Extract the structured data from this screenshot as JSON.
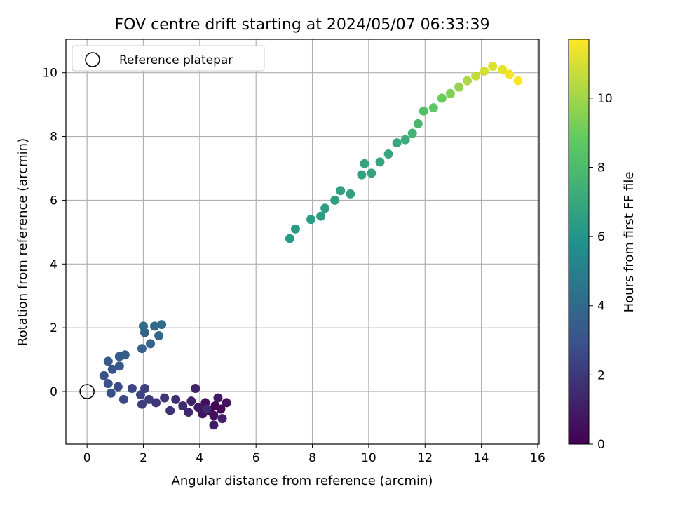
{
  "chart_data": {
    "type": "scatter",
    "title": "FOV centre drift starting at 2024/05/07 06:33:39",
    "xlabel": "Angular distance from reference (arcmin)",
    "ylabel": "Rotation from reference (arcmin)",
    "xlim": [
      -0.75,
      16.05
    ],
    "ylim": [
      -1.65,
      11.05
    ],
    "xticks": [
      0,
      2,
      4,
      6,
      8,
      10,
      12,
      14,
      16
    ],
    "yticks": [
      0,
      2,
      4,
      6,
      8,
      10
    ],
    "grid": true,
    "legend": {
      "placement": "top-left",
      "entries": [
        "Reference platepar"
      ]
    },
    "reference_point": {
      "x": 0,
      "y": 0
    },
    "colorbar": {
      "label": "Hours from first FF file",
      "colormap": "viridis",
      "range": [
        0,
        11.7
      ],
      "ticks": [
        0,
        2,
        4,
        6,
        8,
        10
      ]
    },
    "series": [
      {
        "x": 4.55,
        "y": -0.45,
        "hours": 0.1
      },
      {
        "x": 4.35,
        "y": -0.6,
        "hours": 0.2
      },
      {
        "x": 4.75,
        "y": -0.55,
        "hours": 0.3
      },
      {
        "x": 4.2,
        "y": -0.35,
        "hours": 0.4
      },
      {
        "x": 4.5,
        "y": -0.75,
        "hours": 0.5
      },
      {
        "x": 4.95,
        "y": -0.35,
        "hours": 0.6
      },
      {
        "x": 4.1,
        "y": -0.7,
        "hours": 0.7
      },
      {
        "x": 4.65,
        "y": -0.2,
        "hours": 0.8
      },
      {
        "x": 3.95,
        "y": -0.5,
        "hours": 0.9
      },
      {
        "x": 4.5,
        "y": -1.05,
        "hours": 1.0
      },
      {
        "x": 4.8,
        "y": -0.85,
        "hours": 1.1
      },
      {
        "x": 3.7,
        "y": -0.3,
        "hours": 1.2
      },
      {
        "x": 3.85,
        "y": 0.1,
        "hours": 1.3
      },
      {
        "x": 3.6,
        "y": -0.65,
        "hours": 1.4
      },
      {
        "x": 4.25,
        "y": -0.55,
        "hours": 1.5
      },
      {
        "x": 3.4,
        "y": -0.45,
        "hours": 1.6
      },
      {
        "x": 3.15,
        "y": -0.25,
        "hours": 1.7
      },
      {
        "x": 2.95,
        "y": -0.6,
        "hours": 1.8
      },
      {
        "x": 2.75,
        "y": -0.2,
        "hours": 1.9
      },
      {
        "x": 2.45,
        "y": -0.35,
        "hours": 2.0
      },
      {
        "x": 2.2,
        "y": -0.25,
        "hours": 2.1
      },
      {
        "x": 1.95,
        "y": -0.4,
        "hours": 2.2
      },
      {
        "x": 2.05,
        "y": 0.1,
        "hours": 2.3
      },
      {
        "x": 1.9,
        "y": -0.1,
        "hours": 2.4
      },
      {
        "x": 1.6,
        "y": 0.1,
        "hours": 2.5
      },
      {
        "x": 1.3,
        "y": -0.25,
        "hours": 2.6
      },
      {
        "x": 1.1,
        "y": 0.15,
        "hours": 2.7
      },
      {
        "x": 0.85,
        "y": -0.05,
        "hours": 2.8
      },
      {
        "x": 0.75,
        "y": 0.25,
        "hours": 2.9
      },
      {
        "x": 0.6,
        "y": 0.5,
        "hours": 3.0
      },
      {
        "x": 0.9,
        "y": 0.7,
        "hours": 3.1
      },
      {
        "x": 1.15,
        "y": 0.8,
        "hours": 3.2
      },
      {
        "x": 0.75,
        "y": 0.95,
        "hours": 3.3
      },
      {
        "x": 1.15,
        "y": 1.1,
        "hours": 3.4
      },
      {
        "x": 1.35,
        "y": 1.15,
        "hours": 3.5
      },
      {
        "x": 1.95,
        "y": 1.35,
        "hours": 3.6
      },
      {
        "x": 2.25,
        "y": 1.5,
        "hours": 3.7
      },
      {
        "x": 2.05,
        "y": 1.85,
        "hours": 3.8
      },
      {
        "x": 2.55,
        "y": 1.75,
        "hours": 3.9
      },
      {
        "x": 2.4,
        "y": 2.05,
        "hours": 4.0
      },
      {
        "x": 2.65,
        "y": 2.1,
        "hours": 4.1
      },
      {
        "x": 2.0,
        "y": 2.05,
        "hours": 4.2
      },
      {
        "x": 7.2,
        "y": 4.8,
        "hours": 6.3
      },
      {
        "x": 7.4,
        "y": 5.1,
        "hours": 6.35
      },
      {
        "x": 7.95,
        "y": 5.4,
        "hours": 6.4
      },
      {
        "x": 8.3,
        "y": 5.5,
        "hours": 6.45
      },
      {
        "x": 8.45,
        "y": 5.75,
        "hours": 6.5
      },
      {
        "x": 8.8,
        "y": 6.0,
        "hours": 6.55
      },
      {
        "x": 9.0,
        "y": 6.3,
        "hours": 6.6
      },
      {
        "x": 9.35,
        "y": 6.2,
        "hours": 6.65
      },
      {
        "x": 9.75,
        "y": 6.8,
        "hours": 6.7
      },
      {
        "x": 10.1,
        "y": 6.85,
        "hours": 6.75
      },
      {
        "x": 9.85,
        "y": 7.15,
        "hours": 6.8
      },
      {
        "x": 10.4,
        "y": 7.2,
        "hours": 6.85
      },
      {
        "x": 10.7,
        "y": 7.45,
        "hours": 6.9
      },
      {
        "x": 11.0,
        "y": 7.8,
        "hours": 7.0
      },
      {
        "x": 11.3,
        "y": 7.9,
        "hours": 7.2
      },
      {
        "x": 11.55,
        "y": 8.1,
        "hours": 7.5
      },
      {
        "x": 11.75,
        "y": 8.4,
        "hours": 7.8
      },
      {
        "x": 11.95,
        "y": 8.8,
        "hours": 8.2
      },
      {
        "x": 12.3,
        "y": 8.9,
        "hours": 8.6
      },
      {
        "x": 12.6,
        "y": 9.2,
        "hours": 9.0
      },
      {
        "x": 12.9,
        "y": 9.35,
        "hours": 9.4
      },
      {
        "x": 13.2,
        "y": 9.55,
        "hours": 9.8
      },
      {
        "x": 13.5,
        "y": 9.75,
        "hours": 10.2
      },
      {
        "x": 13.8,
        "y": 9.9,
        "hours": 10.6
      },
      {
        "x": 14.1,
        "y": 10.05,
        "hours": 10.9
      },
      {
        "x": 14.4,
        "y": 10.2,
        "hours": 11.1
      },
      {
        "x": 14.75,
        "y": 10.1,
        "hours": 11.3
      },
      {
        "x": 15.0,
        "y": 9.95,
        "hours": 11.5
      },
      {
        "x": 15.3,
        "y": 9.75,
        "hours": 11.7
      }
    ]
  }
}
